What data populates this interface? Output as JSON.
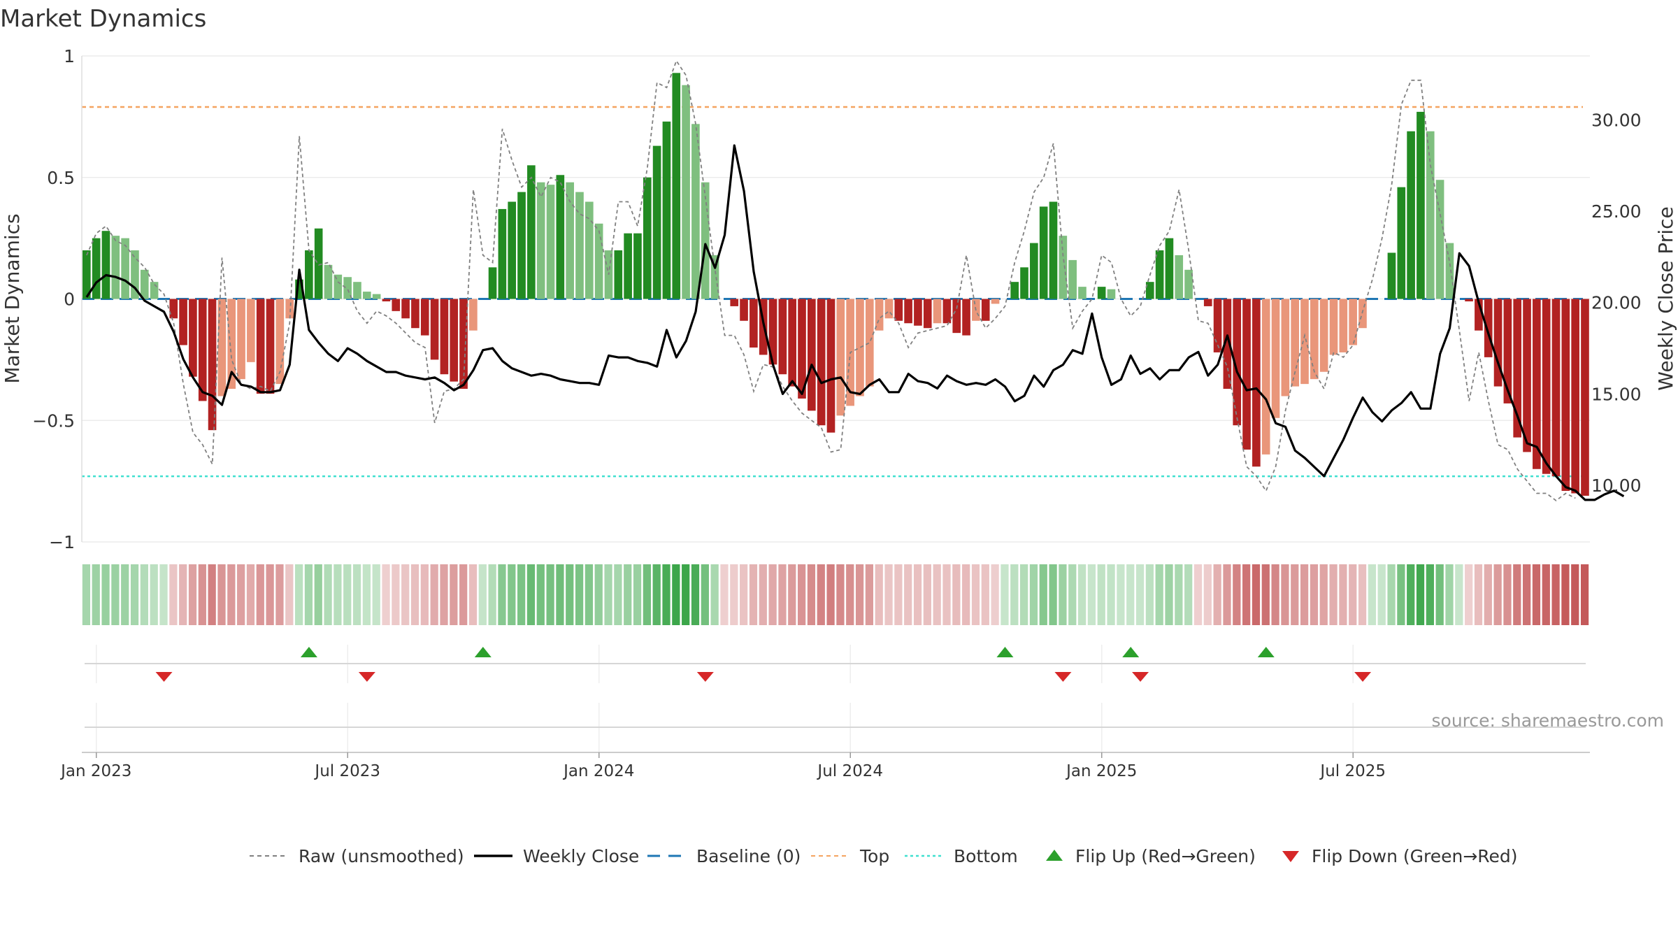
{
  "title": "Market Dynamics",
  "source": "source: sharemaestro.com",
  "chart_data": {
    "type": "bar",
    "title": "Market Dynamics",
    "ylabel_left": "Market Dynamics",
    "ylabel_right": "Weekly Close Price",
    "left_ylim": [
      -1,
      1
    ],
    "left_ticks": [
      1,
      0.5,
      0,
      -0.5,
      -1
    ],
    "left_tick_labels": [
      "1",
      "0.5",
      "0",
      "−0.5",
      "−1"
    ],
    "right_ylim": [
      6.9,
      33.5
    ],
    "right_ticks": [
      30,
      25,
      20,
      15,
      10
    ],
    "right_tick_labels": [
      "30.00",
      "25.00",
      "20.00",
      "15.00",
      "10.00"
    ],
    "x_tick_labels": [
      "Jan 2023",
      "Jul 2023",
      "Jan 2024",
      "Jul 2024",
      "Jan 2025",
      "Jul 2025"
    ],
    "x_tick_weeks": [
      1,
      27,
      53,
      79,
      105,
      131
    ],
    "top_level": 0.79,
    "bottom_level": -0.73,
    "baseline": 0,
    "grid": true,
    "legend_position": "bottom",
    "colors": {
      "strong_up": "#228b22",
      "weak_up": "#7fbf7f",
      "strong_down": "#b22222",
      "weak_down": "#e9967a",
      "price": "#000000",
      "raw": "#808080",
      "baseline": "#1f77b4",
      "top": "#f4a460",
      "bottom": "#40e0d0",
      "flip_up": "#2ca02c",
      "flip_down": "#d62728"
    },
    "legend": [
      {
        "label": "Raw (unsmoothed)",
        "kind": "dashed",
        "color": "#808080"
      },
      {
        "label": "Weekly Close",
        "kind": "solid",
        "color": "#000000"
      },
      {
        "label": "Baseline (0)",
        "kind": "dashed-long",
        "color": "#1f77b4"
      },
      {
        "label": "Top",
        "kind": "dashed",
        "color": "#f4a460"
      },
      {
        "label": "Bottom",
        "kind": "dotted",
        "color": "#40e0d0"
      },
      {
        "label": "Flip Up (Red→Green)",
        "kind": "triangle-up",
        "color": "#2ca02c"
      },
      {
        "label": "Flip Down (Green→Red)",
        "kind": "triangle-down",
        "color": "#d62728"
      }
    ],
    "series": [
      {
        "name": "Market Dynamics",
        "values": [
          0.2,
          0.25,
          0.28,
          0.26,
          0.25,
          0.2,
          0.12,
          0.07,
          0,
          -0.08,
          -0.19,
          -0.32,
          -0.42,
          -0.54,
          -0.4,
          -0.37,
          -0.33,
          -0.26,
          -0.39,
          -0.39,
          -0.35,
          -0.08,
          0.08,
          0.2,
          0.29,
          0.14,
          0.1,
          0.09,
          0.07,
          0.03,
          0.02,
          -0.01,
          -0.05,
          -0.08,
          -0.12,
          -0.15,
          -0.25,
          -0.31,
          -0.34,
          -0.37,
          -0.13,
          0,
          0.13,
          0.37,
          0.4,
          0.44,
          0.55,
          0.48,
          0.47,
          0.51,
          0.48,
          0.44,
          0.4,
          0.31,
          0.2,
          0.2,
          0.27,
          0.27,
          0.5,
          0.63,
          0.73,
          0.93,
          0.88,
          0.72,
          0.48,
          0.18,
          0,
          -0.03,
          -0.09,
          -0.2,
          -0.23,
          -0.27,
          -0.31,
          -0.36,
          -0.41,
          -0.46,
          -0.52,
          -0.55,
          -0.48,
          -0.44,
          -0.4,
          -0.36,
          -0.13,
          -0.08,
          -0.09,
          -0.1,
          -0.11,
          -0.12,
          -0.1,
          -0.1,
          -0.14,
          -0.15,
          -0.09,
          -0.09,
          -0.02,
          0,
          0.07,
          0.13,
          0.23,
          0.38,
          0.4,
          0.26,
          0.16,
          0.05,
          0,
          0.05,
          0.04,
          0,
          0,
          0,
          0.07,
          0.2,
          0.25,
          0.18,
          0.12,
          0,
          -0.03,
          -0.22,
          -0.37,
          -0.52,
          -0.62,
          -0.69,
          -0.64,
          -0.49,
          -0.4,
          -0.36,
          -0.35,
          -0.33,
          -0.3,
          -0.23,
          -0.22,
          -0.19,
          -0.12,
          0,
          0,
          0.19,
          0.46,
          0.69,
          0.77,
          0.69,
          0.49,
          0.23,
          0,
          -0.01,
          -0.13,
          -0.24,
          -0.36,
          -0.43,
          -0.57,
          -0.63,
          -0.7,
          -0.72,
          -0.73,
          -0.79,
          -0.8,
          -0.81
        ]
      },
      {
        "name": "Weekly Close",
        "values": [
          20.3,
          21.1,
          21.5,
          21.4,
          21.2,
          20.8,
          20.1,
          19.8,
          19.5,
          18.4,
          16.9,
          15.9,
          15.1,
          14.9,
          14.4,
          16.2,
          15.5,
          15.4,
          15.1,
          15.1,
          15.2,
          16.6,
          21.8,
          18.5,
          17.8,
          17.2,
          16.8,
          17.5,
          17.2,
          16.8,
          16.5,
          16.2,
          16.2,
          16.0,
          15.9,
          15.8,
          15.9,
          15.6,
          15.2,
          15.5,
          16.3,
          17.4,
          17.5,
          16.8,
          16.4,
          16.2,
          16.0,
          16.1,
          16.0,
          15.8,
          15.7,
          15.6,
          15.6,
          15.5,
          17.1,
          17.0,
          17.0,
          16.8,
          16.7,
          16.5,
          18.5,
          17.0,
          17.9,
          19.5,
          23.2,
          21.9,
          23.7,
          28.6,
          26.1,
          21.7,
          18.9,
          16.6,
          15.0,
          15.7,
          15.0,
          16.6,
          15.6,
          15.8,
          15.9,
          15.1,
          15.0,
          15.5,
          15.8,
          15.1,
          15.1,
          16.1,
          15.7,
          15.6,
          15.3,
          16.0,
          15.7,
          15.5,
          15.6,
          15.5,
          15.8,
          15.4,
          14.6,
          14.9,
          16.0,
          15.4,
          16.3,
          16.6,
          17.4,
          17.2,
          19.4,
          17.0,
          15.5,
          15.8,
          17.1,
          16.1,
          16.4,
          15.8,
          16.3,
          16.3,
          17.0,
          17.3,
          16.0,
          16.6,
          18.2,
          16.2,
          15.2,
          15.3,
          14.7,
          13.4,
          13.2,
          11.9,
          11.5,
          11.0,
          10.5,
          11.5,
          12.5,
          13.7,
          14.8,
          14.0,
          13.5,
          14.1,
          14.5,
          15.1,
          14.2,
          14.2,
          17.2,
          18.6,
          22.7,
          22.0,
          20.0,
          18.3,
          16.7,
          15.2,
          13.8,
          12.3,
          12.1,
          11.2,
          10.5,
          9.9,
          9.7,
          9.2,
          9.2,
          9.5,
          9.7,
          9.4
        ]
      },
      {
        "name": "Raw (unsmoothed)",
        "values": [
          0.18,
          0.27,
          0.3,
          0.24,
          0.22,
          0.17,
          0.13,
          0.06,
          0.02,
          -0.1,
          -0.35,
          -0.55,
          -0.6,
          -0.68,
          0.17,
          -0.25,
          -0.35,
          -0.37,
          -0.36,
          -0.38,
          -0.3,
          -0.1,
          0.67,
          0.2,
          0.14,
          0.15,
          0.07,
          0.04,
          -0.05,
          -0.1,
          -0.05,
          -0.07,
          -0.1,
          -0.14,
          -0.18,
          -0.2,
          -0.51,
          -0.38,
          -0.37,
          -0.33,
          0.45,
          0.18,
          0.15,
          0.7,
          0.57,
          0.46,
          0.5,
          0.42,
          0.5,
          0.48,
          0.4,
          0.35,
          0.33,
          0.28,
          0.1,
          0.4,
          0.4,
          0.3,
          0.54,
          0.89,
          0.87,
          0.98,
          0.92,
          0.72,
          0.42,
          0.12,
          -0.15,
          -0.15,
          -0.23,
          -0.38,
          -0.27,
          -0.28,
          -0.36,
          -0.42,
          -0.47,
          -0.5,
          -0.53,
          -0.63,
          -0.62,
          -0.22,
          -0.2,
          -0.18,
          -0.08,
          -0.05,
          -0.1,
          -0.2,
          -0.14,
          -0.13,
          -0.12,
          -0.11,
          -0.04,
          0.18,
          -0.05,
          -0.12,
          -0.08,
          -0.03,
          0.15,
          0.28,
          0.44,
          0.5,
          0.64,
          0.18,
          -0.12,
          -0.05,
          0,
          0.18,
          0.15,
          0,
          -0.07,
          -0.03,
          0.1,
          0.22,
          0.28,
          0.45,
          0.2,
          -0.09,
          -0.1,
          -0.19,
          -0.28,
          -0.49,
          -0.69,
          -0.73,
          -0.79,
          -0.69,
          -0.46,
          -0.3,
          -0.15,
          -0.3,
          -0.37,
          -0.22,
          -0.24,
          -0.19,
          -0.05,
          0.08,
          0.25,
          0.47,
          0.8,
          0.9,
          0.9,
          0.55,
          0.35,
          0.15,
          -0.13,
          -0.42,
          -0.22,
          -0.42,
          -0.6,
          -0.62,
          -0.7,
          -0.75,
          -0.8,
          -0.8,
          -0.83,
          -0.8,
          -0.82
        ]
      }
    ],
    "color_strip_values": [
      0.2,
      0.25,
      0.28,
      0.26,
      0.25,
      0.2,
      0.12,
      0.07,
      0.02,
      -0.08,
      -0.19,
      -0.32,
      -0.42,
      -0.54,
      -0.4,
      -0.37,
      -0.33,
      -0.26,
      -0.39,
      -0.39,
      -0.35,
      -0.08,
      0.08,
      0.2,
      0.29,
      0.14,
      0.1,
      0.09,
      0.07,
      0.03,
      0.02,
      -0.01,
      -0.05,
      -0.08,
      -0.12,
      -0.15,
      -0.25,
      -0.31,
      -0.34,
      -0.37,
      -0.13,
      0.02,
      0.13,
      0.37,
      0.4,
      0.44,
      0.55,
      0.48,
      0.47,
      0.51,
      0.48,
      0.44,
      0.4,
      0.31,
      0.2,
      0.2,
      0.27,
      0.27,
      0.5,
      0.63,
      0.73,
      0.93,
      0.88,
      0.72,
      0.48,
      0.18,
      -0.01,
      -0.03,
      -0.09,
      -0.2,
      -0.23,
      -0.27,
      -0.31,
      -0.36,
      -0.41,
      -0.46,
      -0.52,
      -0.55,
      -0.48,
      -0.44,
      -0.4,
      -0.36,
      -0.13,
      -0.08,
      -0.09,
      -0.1,
      -0.11,
      -0.12,
      -0.1,
      -0.1,
      -0.14,
      -0.15,
      -0.09,
      -0.09,
      -0.02,
      0.01,
      0.07,
      0.13,
      0.23,
      0.38,
      0.4,
      0.26,
      0.16,
      0.05,
      0.01,
      0.05,
      0.04,
      0.01,
      0.01,
      0.01,
      0.07,
      0.2,
      0.25,
      0.18,
      0.12,
      -0.01,
      -0.03,
      -0.22,
      -0.37,
      -0.52,
      -0.62,
      -0.69,
      -0.64,
      -0.49,
      -0.4,
      -0.36,
      -0.35,
      -0.33,
      -0.3,
      -0.23,
      -0.22,
      -0.19,
      -0.12,
      0.01,
      0.01,
      0.19,
      0.46,
      0.69,
      0.77,
      0.69,
      0.49,
      0.23,
      0.01,
      -0.01,
      -0.13,
      -0.24,
      -0.36,
      -0.43,
      -0.57,
      -0.63,
      -0.7,
      -0.72,
      -0.73,
      -0.79,
      -0.8,
      -0.81
    ],
    "flip_up_weeks": [
      23,
      41,
      95,
      108,
      122
    ],
    "flip_down_weeks": [
      8,
      29,
      64,
      101,
      109,
      132
    ]
  }
}
